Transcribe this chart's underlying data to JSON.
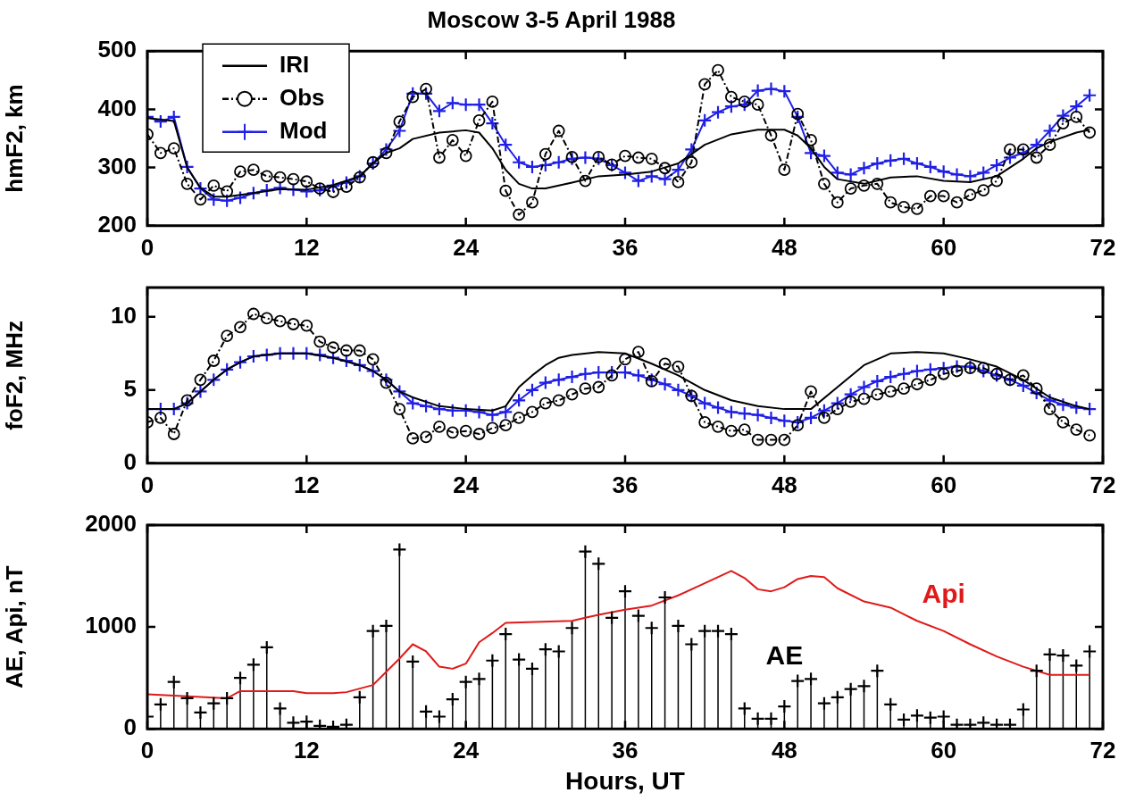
{
  "chart_data": [
    {
      "type": "line",
      "title": "Moscow 3-5 April 1988",
      "ylabel": "hmF2, km",
      "x": [
        0,
        1,
        2,
        3,
        4,
        5,
        6,
        7,
        8,
        9,
        10,
        11,
        12,
        13,
        14,
        15,
        16,
        17,
        18,
        19,
        20,
        21,
        22,
        23,
        24,
        25,
        26,
        27,
        28,
        29,
        30,
        31,
        32,
        33,
        34,
        35,
        36,
        37,
        38,
        39,
        40,
        41,
        42,
        43,
        44,
        45,
        46,
        47,
        48,
        49,
        50,
        51,
        52,
        53,
        54,
        55,
        56,
        57,
        58,
        59,
        60,
        61,
        62,
        63,
        64,
        65,
        66,
        67,
        68,
        69,
        70,
        71
      ],
      "series": [
        {
          "name": "IRI",
          "color": "#000000",
          "type": "line",
          "marker": "none",
          "line_style": "solid",
          "x": [
            0,
            2,
            3,
            4,
            5,
            6,
            8,
            10,
            12,
            14,
            16,
            17,
            18,
            19,
            20,
            22,
            24,
            25,
            26,
            27,
            28,
            29,
            30,
            32,
            34,
            36,
            38,
            40,
            41,
            42,
            44,
            46,
            48,
            49,
            50,
            51,
            52,
            54,
            56,
            58,
            60,
            62,
            64,
            66,
            67,
            68,
            70,
            71
          ],
          "values": [
            385,
            380,
            300,
            265,
            250,
            250,
            256,
            263,
            262,
            270,
            285,
            307,
            325,
            333,
            349,
            360,
            364,
            360,
            333,
            296,
            272,
            264,
            264,
            274,
            285,
            288,
            293,
            307,
            323,
            339,
            357,
            365,
            365,
            355,
            333,
            301,
            280,
            272,
            283,
            285,
            277,
            275,
            285,
            315,
            333,
            344,
            360,
            365
          ]
        },
        {
          "name": "Obs",
          "color": "#000000",
          "type": "line",
          "marker": "circle",
          "line_style": "dashed",
          "values": [
            357,
            325,
            333,
            272,
            245,
            269,
            259,
            293,
            296,
            285,
            283,
            280,
            276,
            264,
            258,
            267,
            283,
            309,
            325,
            379,
            421,
            435,
            317,
            347,
            320,
            381,
            413,
            260,
            219,
            240,
            323,
            363,
            318,
            277,
            318,
            305,
            320,
            317,
            315,
            299,
            275,
            309,
            443,
            467,
            421,
            413,
            408,
            355,
            296,
            392,
            347,
            272,
            240,
            264,
            269,
            272,
            240,
            232,
            229,
            251,
            251,
            240,
            253,
            261,
            277,
            331,
            331,
            317,
            339,
            376,
            387,
            360
          ]
        },
        {
          "name": "Mod",
          "color": "#1f1fe6",
          "type": "line",
          "marker": "cross",
          "line_style": "solid",
          "values": [
            387,
            379,
            387,
            301,
            264,
            245,
            243,
            248,
            256,
            261,
            265,
            262,
            259,
            261,
            269,
            274,
            285,
            307,
            331,
            363,
            427,
            427,
            397,
            411,
            408,
            408,
            376,
            339,
            309,
            301,
            304,
            309,
            315,
            317,
            315,
            304,
            291,
            277,
            285,
            280,
            296,
            331,
            381,
            395,
            405,
            408,
            432,
            435,
            431,
            387,
            325,
            320,
            291,
            288,
            299,
            307,
            312,
            315,
            307,
            301,
            293,
            288,
            285,
            291,
            304,
            317,
            325,
            339,
            363,
            389,
            405,
            424
          ]
        }
      ],
      "xlim": [
        0,
        72
      ],
      "xticks": [
        0,
        12,
        24,
        36,
        48,
        60,
        72
      ],
      "ylim": [
        200,
        500
      ],
      "yticks": [
        200,
        300,
        400,
        500
      ],
      "legend": "top left"
    },
    {
      "type": "line",
      "ylabel": "foF2, MHz",
      "x": [
        0,
        1,
        2,
        3,
        4,
        5,
        6,
        7,
        8,
        9,
        10,
        11,
        12,
        13,
        14,
        15,
        16,
        17,
        18,
        19,
        20,
        21,
        22,
        23,
        24,
        25,
        26,
        27,
        28,
        29,
        30,
        31,
        32,
        33,
        34,
        35,
        36,
        37,
        38,
        39,
        40,
        41,
        42,
        43,
        44,
        45,
        46,
        47,
        48,
        49,
        50,
        51,
        52,
        53,
        54,
        55,
        56,
        57,
        58,
        59,
        60,
        61,
        62,
        63,
        64,
        65,
        66,
        67,
        68,
        69,
        70,
        71
      ],
      "series": [
        {
          "color": "#000000",
          "type": "line",
          "marker": "none",
          "line_style": "solid",
          "x": [
            0,
            2,
            3,
            4,
            5,
            6,
            7,
            8,
            10,
            12,
            14,
            16,
            17,
            18,
            19,
            20,
            22,
            24,
            26,
            27,
            28,
            29,
            30,
            31,
            32,
            34,
            36,
            38,
            40,
            42,
            44,
            46,
            48,
            50,
            52,
            54,
            56,
            58,
            60,
            62,
            64,
            66,
            68,
            70,
            71
          ],
          "values": [
            3.7,
            3.7,
            4.1,
            4.9,
            5.7,
            6.4,
            6.9,
            7.3,
            7.5,
            7.5,
            7.2,
            6.7,
            6.3,
            5.7,
            4.9,
            4.5,
            3.9,
            3.7,
            3.6,
            3.9,
            5.2,
            6.0,
            6.7,
            7.2,
            7.4,
            7.6,
            7.5,
            6.8,
            6.0,
            5.0,
            4.3,
            3.9,
            3.7,
            3.7,
            5.2,
            6.7,
            7.5,
            7.6,
            7.5,
            7.1,
            6.6,
            5.7,
            4.5,
            3.9,
            3.7
          ]
        },
        {
          "color": "#000000",
          "type": "line",
          "marker": "circle",
          "line_style": "dashed",
          "values": [
            2.8,
            3.1,
            2.0,
            4.3,
            5.7,
            7.0,
            8.7,
            9.3,
            10.2,
            9.9,
            9.7,
            9.5,
            9.4,
            8.3,
            7.9,
            7.7,
            7.7,
            7.1,
            5.5,
            3.7,
            1.7,
            1.8,
            2.5,
            2.1,
            2.2,
            2.0,
            2.4,
            2.6,
            3.1,
            3.5,
            4.1,
            4.3,
            4.7,
            5.1,
            5.2,
            6.0,
            7.1,
            7.6,
            5.6,
            6.8,
            6.6,
            4.6,
            2.8,
            2.5,
            2.2,
            2.3,
            1.6,
            1.6,
            1.6,
            2.6,
            4.9,
            3.1,
            3.7,
            4.2,
            4.4,
            4.7,
            4.9,
            5.1,
            5.4,
            5.7,
            6.1,
            6.3,
            6.5,
            6.5,
            6.1,
            5.7,
            6.0,
            5.1,
            3.7,
            2.8,
            2.3,
            1.9
          ]
        },
        {
          "color": "#1f1fe6",
          "type": "line",
          "marker": "cross",
          "line_style": "solid",
          "values": [
            3.7,
            3.7,
            3.7,
            4.1,
            4.9,
            5.7,
            6.4,
            6.9,
            7.3,
            7.4,
            7.5,
            7.5,
            7.5,
            7.4,
            7.2,
            7.0,
            6.7,
            6.3,
            5.7,
            4.9,
            4.1,
            3.9,
            3.7,
            3.6,
            3.6,
            3.5,
            3.3,
            3.5,
            4.3,
            5.0,
            5.5,
            5.7,
            5.9,
            6.1,
            6.2,
            6.2,
            6.2,
            6.0,
            5.7,
            5.4,
            5.0,
            4.6,
            4.1,
            3.8,
            3.5,
            3.4,
            3.3,
            3.1,
            2.9,
            2.8,
            3.1,
            3.6,
            4.1,
            4.7,
            5.2,
            5.6,
            5.9,
            6.1,
            6.3,
            6.4,
            6.5,
            6.6,
            6.6,
            6.3,
            6.0,
            5.7,
            5.3,
            4.8,
            4.3,
            4.0,
            3.8,
            3.7
          ]
        }
      ],
      "xlim": [
        0,
        72
      ],
      "xticks": [
        0,
        12,
        24,
        36,
        48,
        60,
        72
      ],
      "ylim": [
        0,
        12
      ],
      "yticks": [
        0,
        5,
        10
      ]
    },
    {
      "type": "line",
      "xlabel": "Hours, UT",
      "ylabel": "AE, Api, nT",
      "x": [
        0,
        1,
        2,
        3,
        4,
        5,
        6,
        7,
        8,
        9,
        10,
        11,
        12,
        13,
        14,
        15,
        16,
        17,
        18,
        19,
        20,
        21,
        22,
        23,
        24,
        25,
        26,
        27,
        28,
        29,
        30,
        31,
        32,
        33,
        34,
        35,
        36,
        37,
        38,
        39,
        40,
        41,
        42,
        43,
        44,
        45,
        46,
        47,
        48,
        49,
        50,
        51,
        52,
        53,
        54,
        55,
        56,
        57,
        58,
        59,
        60,
        61,
        62,
        63,
        64,
        65,
        66,
        67,
        68,
        69,
        70,
        71
      ],
      "series": [
        {
          "name": "AE",
          "color": "#000000",
          "type": "lollipop",
          "marker": "cross",
          "values": [
            120,
            240,
            460,
            300,
            160,
            250,
            300,
            500,
            630,
            800,
            200,
            60,
            70,
            30,
            20,
            40,
            310,
            960,
            1010,
            1760,
            660,
            170,
            120,
            290,
            460,
            490,
            670,
            930,
            680,
            590,
            780,
            760,
            990,
            1740,
            1620,
            1090,
            1350,
            1110,
            990,
            1290,
            1010,
            830,
            960,
            960,
            930,
            200,
            100,
            100,
            220,
            470,
            490,
            250,
            310,
            390,
            420,
            570,
            240,
            90,
            130,
            110,
            120,
            40,
            40,
            60,
            40,
            40,
            190,
            570,
            730,
            720,
            620,
            760
          ]
        },
        {
          "name": "Api",
          "color": "#e01a1a",
          "type": "line",
          "marker": "none",
          "line_style": "solid",
          "x": [
            0,
            6,
            7,
            11,
            12,
            14,
            15,
            17,
            19,
            20,
            21,
            22,
            23,
            24,
            25,
            26,
            27,
            32,
            33,
            34,
            36,
            38,
            40,
            42,
            44,
            45,
            46,
            47,
            48,
            49,
            50,
            51,
            52,
            54,
            56,
            58,
            60,
            62,
            64,
            66,
            68,
            71
          ],
          "values": [
            340,
            300,
            370,
            370,
            350,
            350,
            360,
            430,
            690,
            830,
            760,
            610,
            590,
            640,
            850,
            940,
            1040,
            1060,
            1090,
            1120,
            1170,
            1210,
            1310,
            1430,
            1550,
            1480,
            1370,
            1350,
            1390,
            1470,
            1500,
            1490,
            1380,
            1250,
            1190,
            1060,
            960,
            830,
            710,
            610,
            530,
            530
          ]
        }
      ],
      "xlim": [
        0,
        72
      ],
      "xticks": [
        0,
        12,
        24,
        36,
        48,
        60,
        72
      ],
      "ylim": [
        0,
        2000
      ],
      "yticks": [
        0,
        1000,
        2000
      ]
    }
  ]
}
